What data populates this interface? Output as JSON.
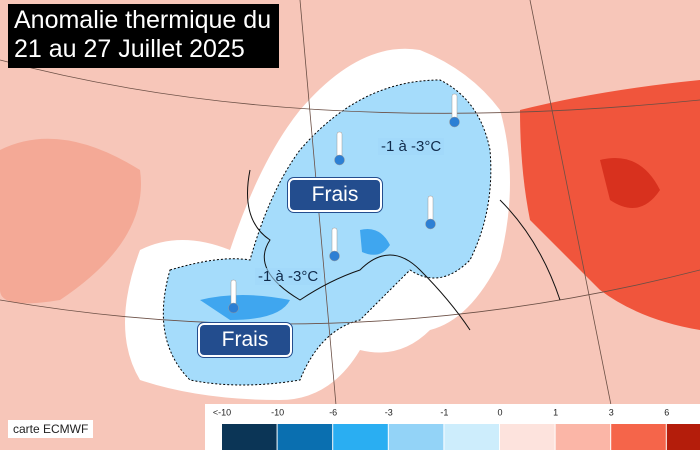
{
  "header": {
    "title": [
      "Anomalie thermique du",
      "21 au 27 Juillet 2025"
    ]
  },
  "labels": [
    {
      "range": "-1 à -3°C",
      "tag": "Frais"
    },
    {
      "range": "-1 à -3°C",
      "tag": "Frais"
    }
  ],
  "credit": "carte ECMWF",
  "legend": {
    "ticks": [
      "<-10",
      "-10",
      "-6",
      "-3",
      "-1",
      "0",
      "1",
      "3",
      "6"
    ],
    "colors": [
      "#0b3556",
      "#0a6fb0",
      "#2aaef2",
      "#93d3f7",
      "#cdedfc",
      "#fde3dd",
      "#fbb6a7",
      "#f5654a",
      "#b41d0b"
    ]
  }
}
